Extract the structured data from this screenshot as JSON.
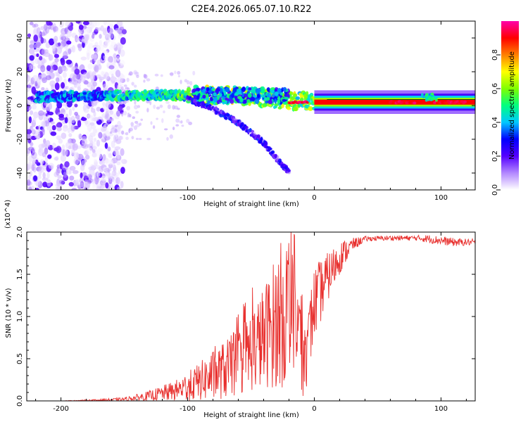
{
  "figure_title": "C2E4.2026.065.07.10.R22",
  "chart_data": [
    {
      "type": "heatmap",
      "title": "C2E4.2026.065.07.10.R22",
      "xlabel": "Height of straight line (km)",
      "ylabel": "Frequency (Hz)",
      "xlim": [
        -227,
        127
      ],
      "ylim": [
        -50,
        50
      ],
      "xticks": [
        -200,
        -100,
        0,
        100
      ],
      "yticks": [
        -40,
        -20,
        0,
        20,
        40
      ],
      "colorbar": {
        "label": "Normalized spectral amplitude",
        "range": [
          0.0,
          1.0
        ],
        "ticks": [
          0.0,
          0.2,
          0.4,
          0.6,
          0.8
        ],
        "colormap": [
          "#ffffff",
          "#b388ff",
          "#5500ff",
          "#0000ff",
          "#00c8ff",
          "#00ff80",
          "#80ff00",
          "#ffff00",
          "#ff8000",
          "#ff0000",
          "#ff00aa"
        ]
      },
      "features": {
        "noise_region_x": [
          -227,
          -160
        ],
        "main_ridge": {
          "x": [
            -220,
            -160,
            -100,
            -60,
            -20,
            0,
            40,
            80,
            127
          ],
          "y": [
            5,
            6,
            6,
            6,
            3,
            2,
            2,
            2,
            2
          ]
        },
        "descending_branch": {
          "x": [
            -100,
            -80,
            -60,
            -40,
            -20
          ],
          "y": [
            4,
            -2,
            -10,
            -22,
            -40
          ]
        },
        "strong_line": {
          "x": [
            0,
            127
          ],
          "y": [
            2,
            2
          ],
          "amplitude": 1.0
        }
      }
    },
    {
      "type": "line",
      "xlabel": "Height of straight line (km)",
      "ylabel": "SNR (10 * v/v)",
      "y_multiplier": "(x10^4)",
      "xlim": [
        -227,
        127
      ],
      "ylim": [
        0,
        2.0
      ],
      "xticks": [
        -200,
        -100,
        0,
        100
      ],
      "yticks": [
        0.0,
        0.5,
        1.0,
        1.5,
        2.0
      ],
      "series": [
        {
          "name": "SNR",
          "color": "#e8302e",
          "x": [
            -227,
            -200,
            -170,
            -150,
            -130,
            -110,
            -95,
            -80,
            -60,
            -40,
            -25,
            -15,
            -8,
            0,
            10,
            20,
            30,
            40,
            60,
            80,
            90,
            100,
            110,
            120,
            127
          ],
          "y": [
            0.0,
            0.0,
            0.01,
            0.02,
            0.06,
            0.12,
            0.2,
            0.3,
            0.45,
            0.75,
            1.05,
            1.25,
            0.4,
            1.15,
            1.45,
            1.7,
            1.85,
            1.92,
            1.93,
            1.93,
            1.92,
            1.9,
            1.88,
            1.88,
            1.88
          ],
          "noise_amplitude": [
            0.0,
            0.0,
            0.01,
            0.02,
            0.06,
            0.12,
            0.2,
            0.3,
            0.4,
            0.6,
            0.9,
            0.9,
            0.4,
            0.45,
            0.3,
            0.2,
            0.08,
            0.03,
            0.03,
            0.03,
            0.05,
            0.05,
            0.05,
            0.04,
            0.04
          ]
        }
      ]
    }
  ]
}
